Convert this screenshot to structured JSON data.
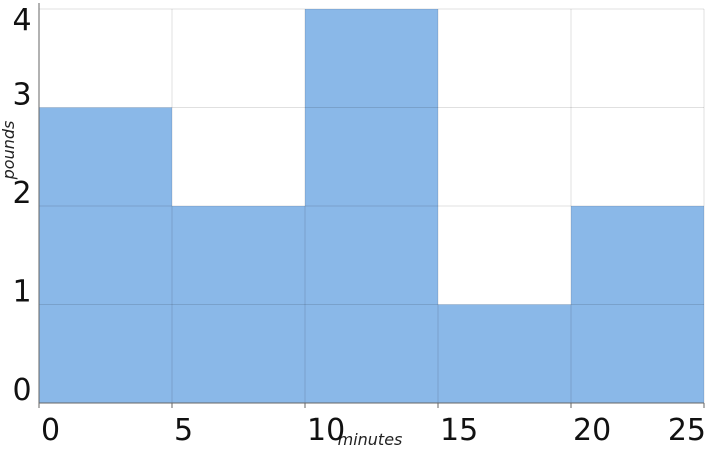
{
  "chart_data": {
    "type": "histogram",
    "bins": [
      0,
      5,
      10,
      15,
      20,
      25
    ],
    "values": [
      3,
      2,
      4,
      1,
      2
    ],
    "color": "#8ab8e8",
    "xlabel": "minutes",
    "ylabel": "pounds",
    "xlim": [
      0,
      25
    ],
    "ylim": [
      0,
      4
    ],
    "xticks": [
      0,
      5,
      10,
      15,
      20,
      25
    ],
    "yticks": [
      0,
      1,
      2,
      3,
      4
    ],
    "grid": true
  }
}
